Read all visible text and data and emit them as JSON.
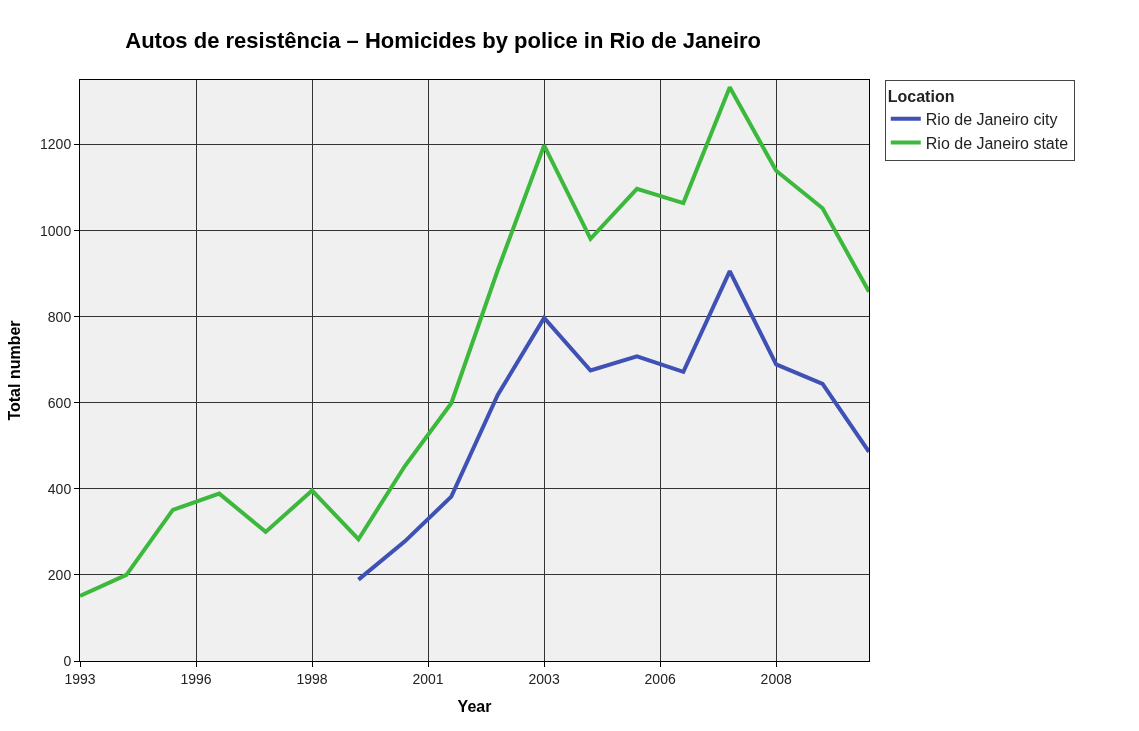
{
  "chart_data": {
    "type": "line",
    "title": "Autos de resistência – Homicides by police in Rio de Janeiro",
    "xlabel": "Year",
    "ylabel": "Total number",
    "legend_title": "Location",
    "x": [
      1993,
      1994,
      1995,
      1996,
      1997,
      1998,
      1999,
      2000,
      2001,
      2002,
      2003,
      2004,
      2005,
      2006,
      2007,
      2008,
      2009,
      2010
    ],
    "series": [
      {
        "name": "Rio de Janeiro city",
        "color": "#3f51b5",
        "values": [
          null,
          null,
          null,
          null,
          null,
          null,
          189,
          278,
          382,
          618,
          797,
          675,
          708,
          672,
          906,
          689,
          644,
          486
        ]
      },
      {
        "name": "Rio de Janeiro state",
        "color": "#3cb93c",
        "values": [
          151,
          200,
          351,
          389,
          300,
          396,
          283,
          453,
          599,
          908,
          1198,
          981,
          1097,
          1064,
          1333,
          1139,
          1052,
          858
        ]
      }
    ],
    "xlim": [
      1993,
      2010
    ],
    "xticks": [
      1993,
      {
        "value": 1995.5,
        "label": "1996"
      },
      1998,
      {
        "value": 2000.5,
        "label": "2001"
      },
      2003,
      {
        "value": 2005.5,
        "label": "2006"
      },
      2008
    ],
    "ylim": [
      0,
      1350
    ],
    "yticks": [
      0,
      200,
      400,
      600,
      800,
      1000,
      1200
    ],
    "grid": true,
    "legend": "top right",
    "marker": "none",
    "line_style": "solid"
  }
}
